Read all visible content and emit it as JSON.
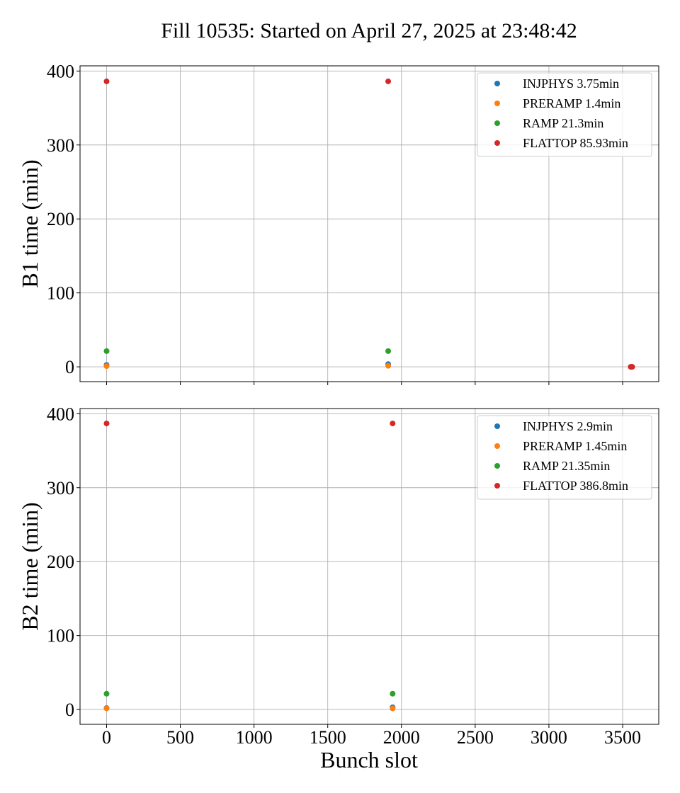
{
  "chart_data": {
    "type": "scatter",
    "title": "Fill 10535: Started on April 27, 2025 at 23:48:42",
    "xlabel": "Bunch slot",
    "xlim": [
      -180,
      3745
    ],
    "xticks": [
      0,
      500,
      1000,
      1500,
      2000,
      2500,
      3000,
      3500
    ],
    "xtick_labels": [
      "0",
      "500",
      "1000",
      "1500",
      "2000",
      "2500",
      "3000",
      "3500"
    ],
    "grid": true,
    "legend_position": "top-right",
    "colors": {
      "INJPHYS": "#1f77b4",
      "PRERAMP": "#ff7f0e",
      "RAMP": "#2ca02c",
      "FLATTOP": "#d62728"
    },
    "panels": [
      {
        "ylabel": "B1 time (min)",
        "ylim": [
          -20,
          407
        ],
        "yticks": [
          0,
          100,
          200,
          300,
          400
        ],
        "ytick_labels": [
          "0",
          "100",
          "200",
          "300",
          "400"
        ],
        "series": [
          {
            "name": "INJPHYS 3.75min",
            "key": "INJPHYS",
            "points": [
              [
                0,
                2.5
              ],
              [
                1910,
                3.75
              ]
            ]
          },
          {
            "name": "PRERAMP 1.4min",
            "key": "PRERAMP",
            "points": [
              [
                0,
                1.0
              ],
              [
                1910,
                1.4
              ]
            ]
          },
          {
            "name": "RAMP 21.3min",
            "key": "RAMP",
            "points": [
              [
                0,
                21.3
              ],
              [
                1910,
                21.3
              ]
            ]
          },
          {
            "name": "FLATTOP 85.93min",
            "key": "FLATTOP",
            "points": [
              [
                0,
                386
              ],
              [
                1910,
                386
              ],
              [
                3555,
                0
              ],
              [
                3560,
                0
              ],
              [
                3565,
                0
              ]
            ]
          }
        ]
      },
      {
        "ylabel": "B2 time (min)",
        "ylim": [
          -20,
          407
        ],
        "yticks": [
          0,
          100,
          200,
          300,
          400
        ],
        "ytick_labels": [
          "0",
          "100",
          "200",
          "300",
          "400"
        ],
        "series": [
          {
            "name": "INJPHYS 2.9min",
            "key": "INJPHYS",
            "points": [
              [
                0,
                2.0
              ],
              [
                1940,
                3.0
              ]
            ]
          },
          {
            "name": "PRERAMP 1.45min",
            "key": "PRERAMP",
            "points": [
              [
                0,
                1.5
              ],
              [
                1940,
                1.5
              ]
            ]
          },
          {
            "name": "RAMP 21.35min",
            "key": "RAMP",
            "points": [
              [
                0,
                21.35
              ],
              [
                1940,
                21.35
              ]
            ]
          },
          {
            "name": "FLATTOP 386.8min",
            "key": "FLATTOP",
            "points": [
              [
                0,
                386.8
              ],
              [
                1940,
                386.8
              ]
            ]
          }
        ]
      }
    ]
  }
}
